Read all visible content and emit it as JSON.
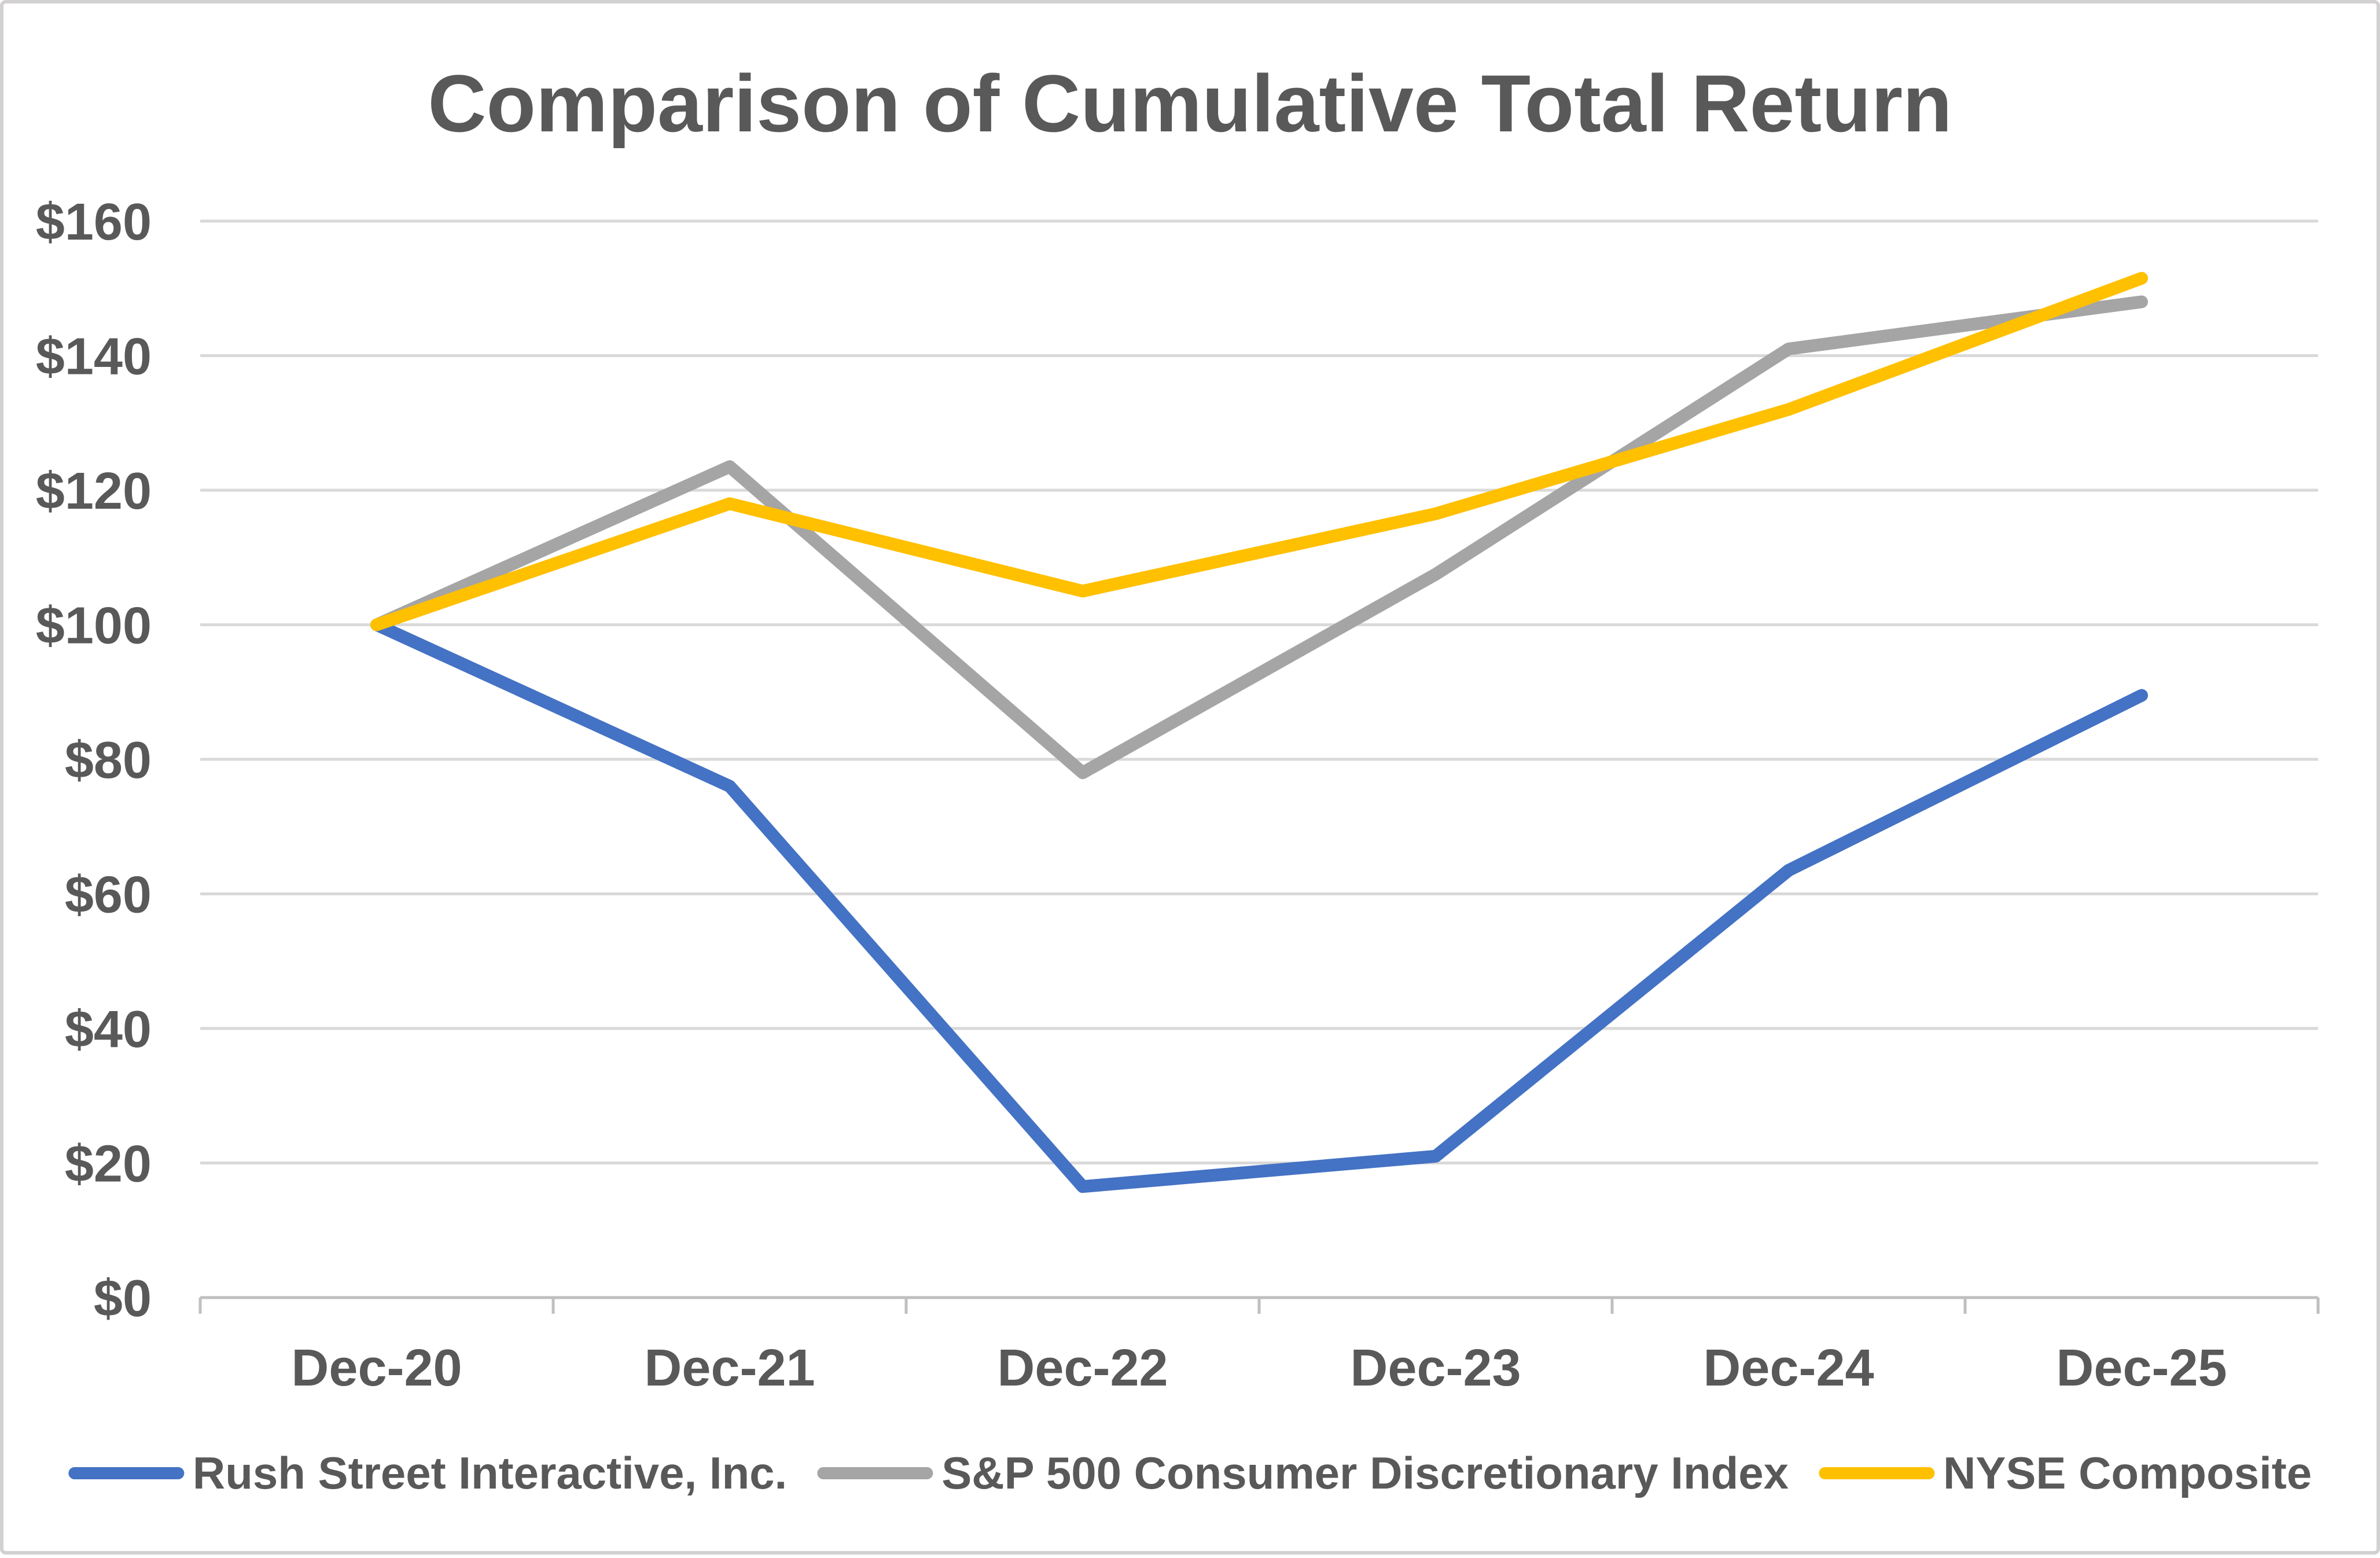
{
  "title": "Comparison of Cumulative Total Return",
  "colors": {
    "text": "#595959",
    "gridline": "#D9D9D9",
    "axis": "#BFBFBF",
    "background": "#FFFFFF",
    "frame_border": "#D2D0D0",
    "series_blue": "#4472C4",
    "series_gray": "#A5A5A5",
    "series_gold": "#FFC000"
  },
  "chart_data": {
    "type": "line",
    "title": "Comparison of Cumulative Total Return",
    "categories": [
      "Dec-20",
      "Dec-21",
      "Dec-22",
      "Dec-23",
      "Dec-24",
      "Dec-25"
    ],
    "y_ticks": [
      0,
      20,
      40,
      60,
      80,
      100,
      120,
      140,
      160
    ],
    "y_tick_labels": [
      "$0",
      "$20",
      "$40",
      "$60",
      "$80",
      "$100",
      "$120",
      "$140",
      "$160"
    ],
    "ylim": [
      0,
      160
    ],
    "grid": "horizontal",
    "legend_position": "bottom",
    "series": [
      {
        "name": "Rush Street Interactive, Inc.",
        "color": "#4472C4",
        "values": [
          100,
          76,
          16.5,
          21,
          63.5,
          89.5
        ]
      },
      {
        "name": "S&P 500 Consumer Discretionary Index",
        "color": "#A5A5A5",
        "values": [
          100,
          123.5,
          78,
          107.5,
          141,
          148
        ]
      },
      {
        "name": "NYSE Composite",
        "color": "#FFC000",
        "values": [
          100,
          118,
          105,
          116.5,
          132,
          151.5
        ]
      }
    ]
  }
}
